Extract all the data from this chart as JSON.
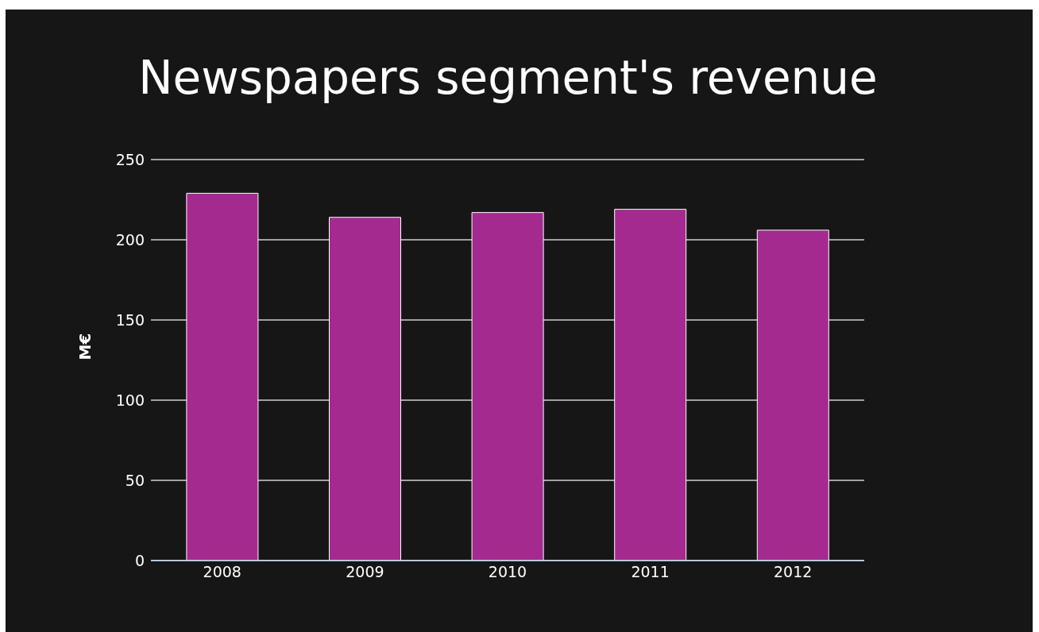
{
  "chart_data": {
    "type": "bar",
    "title": "Newspapers segment's revenue",
    "ylabel": "M€",
    "categories": [
      "2008",
      "2009",
      "2010",
      "2011",
      "2012"
    ],
    "values": [
      229,
      214,
      217,
      219,
      206
    ],
    "color": "#a52a8f",
    "ylim": [
      0,
      250
    ],
    "yticks": [
      0,
      50,
      100,
      150,
      200,
      250
    ],
    "grid": "y"
  }
}
